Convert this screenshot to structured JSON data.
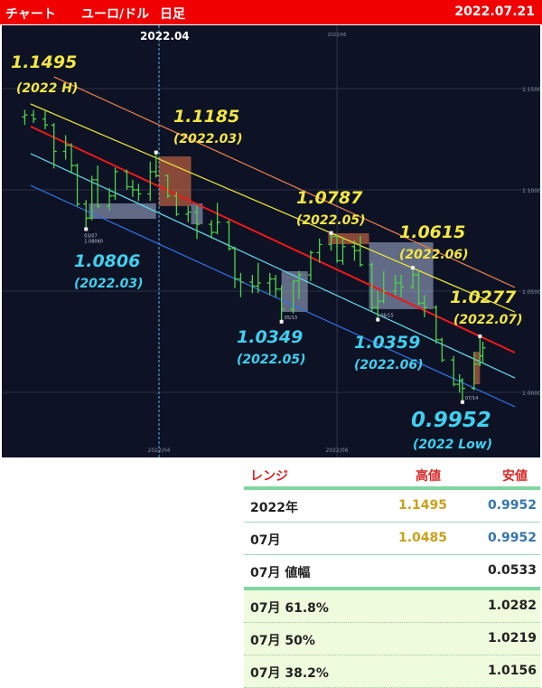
{
  "header": {
    "title": "チャート",
    "pair": "ユーロ/ドル",
    "timeframe": "日足",
    "date": "2022.07.21"
  },
  "colors": {
    "header_bg": "#f00000",
    "chart_bg": "#0d1224",
    "bar": "#4fd34a",
    "high": "#c9a11c",
    "low": "#3676ad",
    "annotation_high": "#f3e641",
    "annotation_low": "#3fd0ef"
  },
  "chart_data": {
    "type": "ohlc",
    "title": "",
    "ylim": [
      0.9825,
      1.1625
    ],
    "yticks": [
      "1.1500",
      "1.1000",
      "1.0500",
      "1.0000"
    ],
    "ytick_values": [
      1.15,
      1.1,
      1.05,
      1.0
    ],
    "xticks": [
      {
        "date": "2022-04-01",
        "label": "2022/04",
        "marker_label": "2022.04"
      },
      {
        "date": "2022-06-01",
        "label": "2022/06"
      }
    ],
    "grid": true,
    "bars": [
      [
        "2022-02-14",
        1.136,
        1.1395,
        1.132,
        1.137
      ],
      [
        "2022-02-17",
        1.137,
        1.1395,
        1.133,
        1.135
      ],
      [
        "2022-02-21",
        1.135,
        1.139,
        1.13,
        1.132
      ],
      [
        "2022-02-24",
        1.132,
        1.133,
        1.1106,
        1.119
      ],
      [
        "2022-02-28",
        1.119,
        1.127,
        1.115,
        1.122
      ],
      [
        "2022-03-02",
        1.122,
        1.123,
        1.108,
        1.112
      ],
      [
        "2022-03-04",
        1.112,
        1.113,
        1.092,
        1.093
      ],
      [
        "2022-03-07",
        1.093,
        1.095,
        1.0806,
        1.086
      ],
      [
        "2022-03-09",
        1.086,
        1.107,
        1.085,
        1.105
      ],
      [
        "2022-03-11",
        1.105,
        1.112,
        1.091,
        1.092
      ],
      [
        "2022-03-15",
        1.092,
        1.101,
        1.09,
        1.097
      ],
      [
        "2022-03-17",
        1.097,
        1.111,
        1.095,
        1.109
      ],
      [
        "2022-03-21",
        1.109,
        1.11,
        1.1,
        1.1015
      ],
      [
        "2022-03-23",
        1.1015,
        1.105,
        1.0965,
        1.1
      ],
      [
        "2022-03-25",
        1.1,
        1.103,
        1.0945,
        1.098
      ],
      [
        "2022-03-29",
        1.098,
        1.114,
        1.0945,
        1.109
      ],
      [
        "2022-03-31",
        1.109,
        1.1185,
        1.106,
        1.107
      ],
      [
        "2022-04-04",
        1.107,
        1.1075,
        1.096,
        1.097
      ],
      [
        "2022-04-07",
        1.097,
        1.099,
        1.087,
        1.088
      ],
      [
        "2022-04-11",
        1.088,
        1.092,
        1.084,
        1.089
      ],
      [
        "2022-04-14",
        1.089,
        1.0925,
        1.0757,
        1.083
      ],
      [
        "2022-04-19",
        1.083,
        1.085,
        1.076,
        1.079
      ],
      [
        "2022-04-21",
        1.079,
        1.0936,
        1.078,
        1.084
      ],
      [
        "2022-04-25",
        1.084,
        1.085,
        1.07,
        1.071
      ],
      [
        "2022-04-27",
        1.071,
        1.072,
        1.0515,
        1.056
      ],
      [
        "2022-04-29",
        1.056,
        1.059,
        1.047,
        1.0545
      ],
      [
        "2022-05-03",
        1.0545,
        1.058,
        1.049,
        1.0525
      ],
      [
        "2022-05-05",
        1.0525,
        1.064,
        1.049,
        1.054
      ],
      [
        "2022-05-09",
        1.054,
        1.059,
        1.048,
        1.056
      ],
      [
        "2022-05-11",
        1.056,
        1.058,
        1.047,
        1.051
      ],
      [
        "2022-05-13",
        1.051,
        1.053,
        1.0349,
        1.041
      ],
      [
        "2022-05-17",
        1.041,
        1.055,
        1.039,
        1.055
      ],
      [
        "2022-05-19",
        1.055,
        1.06,
        1.046,
        1.058
      ],
      [
        "2022-05-23",
        1.058,
        1.07,
        1.055,
        1.069
      ],
      [
        "2022-05-26",
        1.069,
        1.076,
        1.064,
        1.073
      ],
      [
        "2022-05-30",
        1.073,
        1.0787,
        1.07,
        1.077
      ],
      [
        "2022-06-01",
        1.077,
        1.078,
        1.064,
        1.065
      ],
      [
        "2022-06-03",
        1.065,
        1.076,
        1.063,
        1.072
      ],
      [
        "2022-06-07",
        1.072,
        1.075,
        1.065,
        1.07
      ],
      [
        "2022-06-09",
        1.07,
        1.0773,
        1.062,
        1.063
      ],
      [
        "2022-06-13",
        1.063,
        1.064,
        1.04,
        1.042
      ],
      [
        "2022-06-15",
        1.042,
        1.05,
        1.0359,
        1.045
      ],
      [
        "2022-06-17",
        1.045,
        1.06,
        1.044,
        1.05
      ],
      [
        "2022-06-21",
        1.05,
        1.058,
        1.048,
        1.054
      ],
      [
        "2022-06-23",
        1.054,
        1.058,
        1.047,
        1.052
      ],
      [
        "2022-06-27",
        1.052,
        1.0615,
        1.051,
        1.058
      ],
      [
        "2022-06-29",
        1.058,
        1.06,
        1.043,
        1.044
      ],
      [
        "2022-07-01",
        1.044,
        1.048,
        1.037,
        1.042
      ],
      [
        "2022-07-05",
        1.042,
        1.043,
        1.024,
        1.026
      ],
      [
        "2022-07-07",
        1.026,
        1.027,
        1.015,
        1.016
      ],
      [
        "2022-07-11",
        1.016,
        1.018,
        1.003,
        1.004
      ],
      [
        "2022-07-13",
        1.004,
        1.009,
        0.9998,
        1.006
      ],
      [
        "2022-07-14",
        1.006,
        1.007,
        0.9952,
        1.002
      ],
      [
        "2022-07-18",
        1.002,
        1.02,
        1.001,
        1.014
      ],
      [
        "2022-07-20",
        1.014,
        1.0277,
        1.013,
        1.018
      ],
      [
        "2022-07-21",
        1.018,
        1.025,
        1.015,
        1.022
      ]
    ],
    "channel_lines": [
      {
        "color": "#e07a4a",
        "from": [
          "2022-02-24",
          1.1558
        ],
        "to": [
          "2022-08-01",
          1.0518
        ]
      },
      {
        "color": "#e6e23a",
        "from": [
          "2022-02-16",
          1.1424
        ],
        "to": [
          "2022-08-01",
          1.0397
        ]
      },
      {
        "color": "#f01818",
        "from": [
          "2022-02-16",
          1.1313
        ],
        "to": [
          "2022-08-01",
          1.0196
        ]
      },
      {
        "color": "#5fd6e8",
        "from": [
          "2022-02-16",
          1.1179
        ],
        "to": [
          "2022-08-01",
          1.0071
        ]
      },
      {
        "color": "#2f6fe0",
        "from": [
          "2022-02-16",
          1.1022
        ],
        "to": [
          "2022-08-01",
          0.9929
        ]
      }
    ],
    "boxes": [
      {
        "kind": "gray",
        "from": "2022-03-08",
        "to": "2022-03-31",
        "high": 1.0933,
        "low": 1.0857
      },
      {
        "kind": "orange",
        "from": "2022-04-01",
        "to": "2022-04-12",
        "high": 1.1165,
        "low": 1.092
      },
      {
        "kind": "gray",
        "from": "2022-04-12",
        "to": "2022-04-16",
        "high": 1.0933,
        "low": 1.083
      },
      {
        "kind": "gray",
        "from": "2022-05-13",
        "to": "2022-05-22",
        "high": 1.0598,
        "low": 1.0397
      },
      {
        "kind": "orange",
        "from": "2022-05-29",
        "to": "2022-06-12",
        "high": 1.0786,
        "low": 1.0732
      },
      {
        "kind": "gray",
        "from": "2022-06-12",
        "to": "2022-07-04",
        "high": 1.0741,
        "low": 1.0411
      },
      {
        "kind": "orange",
        "from": "2022-07-18",
        "to": "2022-07-20",
        "high": 1.02,
        "low": 1.004
      }
    ],
    "point_labels": [
      {
        "date": "2022-03-07",
        "price": 1.0806,
        "text": "03/07",
        "value": "1.08060"
      },
      {
        "date": "2022-05-13",
        "price": 1.0349,
        "text": "05/13"
      },
      {
        "date": "2022-06-15",
        "price": 1.0359,
        "text": "06/15"
      },
      {
        "date": "2022-07-14",
        "price": 0.9952,
        "text": "07/14"
      },
      {
        "date": "2022-03-31",
        "price": 1.1185
      },
      {
        "date": "2022-05-30",
        "price": 1.0787
      },
      {
        "date": "2022-06-27",
        "price": 1.0615
      },
      {
        "date": "2022-07-20",
        "price": 1.0277
      }
    ],
    "annotations": [
      {
        "value": "1.1495",
        "period": "(2022 H)",
        "type": "high"
      },
      {
        "value": "1.1185",
        "period": "(2022.03)",
        "type": "high"
      },
      {
        "value": "1.0787",
        "period": "(2022.05)",
        "type": "high"
      },
      {
        "value": "1.0615",
        "period": "(2022.06)",
        "type": "high"
      },
      {
        "value": "1.0277",
        "period": "(2022.07)",
        "type": "high"
      },
      {
        "value": "1.0806",
        "period": "(2022.03)",
        "type": "low"
      },
      {
        "value": "1.0349",
        "period": "(2022.05)",
        "type": "low"
      },
      {
        "value": "1.0359",
        "period": "(2022.06)",
        "type": "low"
      },
      {
        "value": "0.9952",
        "period": "(2022 Low)",
        "type": "low"
      }
    ]
  },
  "table": {
    "headers": [
      "レンジ",
      "高値",
      "安値"
    ],
    "rows": [
      {
        "label": "2022年",
        "high": "1.1495",
        "low": "0.9952"
      },
      {
        "label": "07月",
        "high": "1.0485",
        "low": "0.9952"
      },
      {
        "label": "07月 値幅",
        "high": "",
        "low": "0.0533"
      },
      {
        "label": "07月  61.8%",
        "high": "",
        "low": "1.0282"
      },
      {
        "label": "07月  50%",
        "high": "",
        "low": "1.0219"
      },
      {
        "label": "07月  38.2%",
        "high": "",
        "low": "1.0156"
      }
    ]
  }
}
